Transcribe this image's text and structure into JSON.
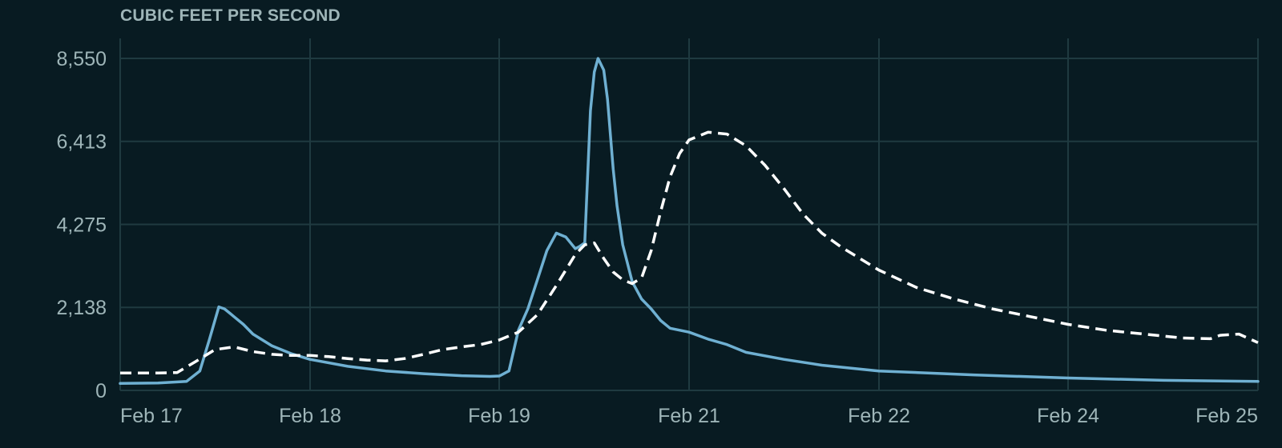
{
  "chart_data": {
    "type": "line",
    "title": "",
    "ylabel": "CUBIC FEET PER SECOND",
    "xlabel": "",
    "y_ticks": [
      "0",
      "2,138",
      "4,275",
      "6,413",
      "8,550"
    ],
    "y_tick_values": [
      0,
      2138,
      4275,
      6413,
      8550
    ],
    "ylim": [
      0,
      8550
    ],
    "x_ticks": [
      "Feb 17",
      "Feb 18",
      "Feb 19",
      "Feb 21",
      "Feb 22",
      "Feb 24",
      "Feb 25"
    ],
    "x_tick_values": [
      0,
      1,
      2,
      3,
      4,
      5,
      6
    ],
    "xlim": [
      0,
      6.0
    ],
    "grid": true,
    "colors": {
      "background": "#081b22",
      "grid": "#1f3a40",
      "axis_text": "#9eb5b8",
      "series_solid": "#6fb0d2",
      "series_dashed": "#ffffff"
    },
    "series": [
      {
        "style": "solid",
        "x": [
          0,
          0.2,
          0.35,
          0.42,
          0.47,
          0.52,
          0.55,
          0.58,
          0.6,
          0.65,
          0.7,
          0.8,
          0.9,
          1.0,
          1.2,
          1.4,
          1.6,
          1.8,
          1.95,
          2.0,
          2.05,
          2.1,
          2.15,
          2.2,
          2.25,
          2.3,
          2.35,
          2.4,
          2.42,
          2.45,
          2.48,
          2.5,
          2.52,
          2.55,
          2.57,
          2.6,
          2.62,
          2.65,
          2.7,
          2.75,
          2.8,
          2.85,
          2.9,
          3.0,
          3.1,
          3.2,
          3.3,
          3.5,
          3.7,
          4.0,
          4.5,
          5.0,
          5.5,
          6.0
        ],
        "y": [
          180,
          190,
          230,
          500,
          1300,
          2150,
          2100,
          1980,
          1900,
          1700,
          1450,
          1150,
          950,
          800,
          620,
          500,
          430,
          380,
          360,
          370,
          500,
          1550,
          2100,
          2850,
          3600,
          4050,
          3950,
          3650,
          3700,
          3800,
          7200,
          8200,
          8550,
          8250,
          7500,
          5700,
          4750,
          3750,
          2800,
          2350,
          2100,
          1800,
          1600,
          1500,
          1320,
          1180,
          980,
          800,
          650,
          500,
          400,
          320,
          260,
          230
        ]
      },
      {
        "style": "dashed",
        "x": [
          0,
          0.2,
          0.3,
          0.4,
          0.5,
          0.6,
          0.7,
          0.8,
          0.9,
          1.0,
          1.1,
          1.2,
          1.3,
          1.4,
          1.5,
          1.6,
          1.7,
          1.8,
          1.9,
          2.0,
          2.1,
          2.2,
          2.3,
          2.35,
          2.4,
          2.45,
          2.5,
          2.55,
          2.6,
          2.65,
          2.7,
          2.75,
          2.8,
          2.85,
          2.9,
          2.95,
          3.0,
          3.1,
          3.2,
          3.3,
          3.4,
          3.5,
          3.6,
          3.7,
          3.8,
          3.9,
          4.0,
          4.2,
          4.4,
          4.6,
          4.8,
          5.0,
          5.2,
          5.4,
          5.6,
          5.75,
          5.8,
          5.9,
          6.0
        ],
        "y": [
          450,
          450,
          460,
          750,
          1050,
          1120,
          1000,
          930,
          900,
          900,
          870,
          820,
          780,
          760,
          820,
          930,
          1050,
          1120,
          1180,
          1300,
          1500,
          1950,
          2700,
          3100,
          3500,
          3750,
          3800,
          3400,
          3050,
          2850,
          2750,
          2900,
          3600,
          4600,
          5500,
          6100,
          6450,
          6650,
          6600,
          6300,
          5800,
          5200,
          4550,
          4050,
          3700,
          3400,
          3100,
          2650,
          2350,
          2100,
          1900,
          1700,
          1550,
          1450,
          1350,
          1330,
          1420,
          1450,
          1230
        ]
      }
    ]
  }
}
